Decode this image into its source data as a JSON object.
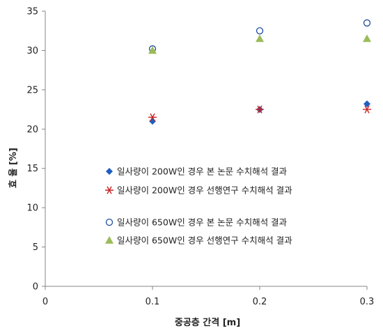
{
  "chart_data": {
    "type": "scatter",
    "title": "",
    "xlabel": "중공층 간격 [m]",
    "ylabel": "효 율 [%]",
    "xlim": [
      0,
      0.3
    ],
    "ylim": [
      0,
      35
    ],
    "xticks": [
      0,
      0.1,
      0.2,
      0.3
    ],
    "yticks": [
      0,
      5,
      10,
      15,
      20,
      25,
      30,
      35
    ],
    "xtick_labels": [
      "0",
      "0.1",
      "0.2",
      "0.3"
    ],
    "ytick_labels": [
      "0",
      "5",
      "10",
      "15",
      "20",
      "25",
      "30",
      "35"
    ],
    "grid": false,
    "legend_position": "lower-center",
    "series": [
      {
        "name": "일사량이 200W인 경우 본 논문 수치해석 결과",
        "marker": "diamond",
        "color": "#1f5fbf",
        "points": [
          [
            0.1,
            21.0
          ],
          [
            0.2,
            22.5
          ],
          [
            0.3,
            23.2
          ]
        ]
      },
      {
        "name": "일사량이 200W인 경우 선행연구 수치해석 결과",
        "marker": "asterisk",
        "color": "#cc2222",
        "points": [
          [
            0.1,
            21.5
          ],
          [
            0.2,
            22.5
          ],
          [
            0.3,
            22.5
          ]
        ]
      },
      {
        "name": "일사량이 650W인 경우 본 논문 수치해석 결과",
        "marker": "circle-open",
        "color": "#1f4e9e",
        "points": [
          [
            0.1,
            30.2
          ],
          [
            0.2,
            32.5
          ],
          [
            0.3,
            33.5
          ]
        ]
      },
      {
        "name": "일사량이 650W인 경우 선행연구 수치해석 결과",
        "marker": "triangle",
        "color": "#9bbb59",
        "points": [
          [
            0.1,
            30.0
          ],
          [
            0.2,
            31.5
          ],
          [
            0.3,
            31.5
          ]
        ]
      }
    ]
  }
}
